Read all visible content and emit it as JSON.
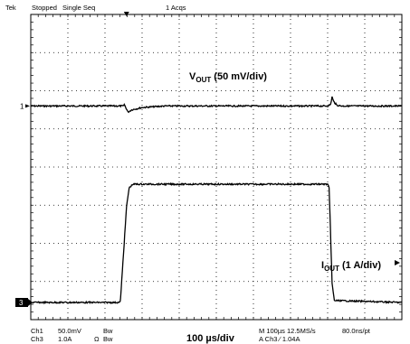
{
  "header": {
    "brand": "Tek",
    "state": "Stopped",
    "mode": "Single Seq",
    "acqs": "1 Acqs"
  },
  "footer": {
    "ch1_name": "Ch1",
    "ch1_scale": "50.0mV",
    "ch1_bw": "Bᴡ",
    "ch3_name": "Ch3",
    "ch3_scale": "1.0A",
    "ch3_ohm": "Ω",
    "ch3_bw": "Bᴡ",
    "timebase_info": "M 100µs 12.5MS/s",
    "resolution": "80.0ns/pt",
    "trigger_info": "A  Ch3  ∕  1.04A",
    "timebase_label": "100 µs/div"
  },
  "markers": {
    "ch1_marker": "1",
    "ch3_marker": "3"
  },
  "chart_data": {
    "type": "line",
    "x_unit": "µs",
    "x_range": [
      0,
      1000
    ],
    "divisions": {
      "horizontal": 10,
      "vertical": 8
    },
    "grid": true,
    "series": [
      {
        "name": "V",
        "sub": "OUT",
        "suffix": " (50 mV/div)",
        "unit": "mV",
        "offset_div": 5.6,
        "color": "#000000",
        "points": [
          [
            0,
            0
          ],
          [
            250,
            0
          ],
          [
            252,
            2
          ],
          [
            262,
            -8
          ],
          [
            272,
            -5
          ],
          [
            300,
            -2
          ],
          [
            330,
            -1
          ],
          [
            360,
            0
          ],
          [
            800,
            0
          ],
          [
            808,
            2
          ],
          [
            812,
            12
          ],
          [
            816,
            6
          ],
          [
            825,
            1
          ],
          [
            840,
            0
          ],
          [
            1000,
            0
          ]
        ]
      },
      {
        "name": "I",
        "sub": "OUT",
        "suffix": " (1 A/div)",
        "unit": "A",
        "offset_div": 0.45,
        "color": "#000000",
        "points": [
          [
            0,
            0
          ],
          [
            240,
            0
          ],
          [
            242,
            0.1
          ],
          [
            258,
            2.5
          ],
          [
            265,
            3.0
          ],
          [
            275,
            3.1
          ],
          [
            800,
            3.1
          ],
          [
            804,
            3.0
          ],
          [
            812,
            0.5
          ],
          [
            818,
            0.05
          ],
          [
            1000,
            0
          ]
        ]
      }
    ]
  }
}
